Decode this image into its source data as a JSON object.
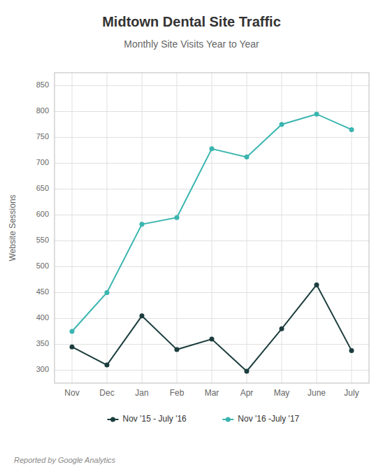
{
  "chart_data": {
    "type": "line",
    "title": "Midtown Dental Site Traffic",
    "subtitle": "Monthly Site Visits Year to Year",
    "y_label": "Website Sessions",
    "annotations": [
      "Reported by Google Analytics"
    ],
    "categories": [
      "Nov",
      "Dec",
      "Jan",
      "Feb",
      "Mar",
      "Apr",
      "May",
      "June",
      "July"
    ],
    "series": [
      {
        "name": "Nov '15 - July '16",
        "color": "#1c3d3d",
        "marker": "circle",
        "values": [
          345,
          310,
          405,
          340,
          360,
          298,
          380,
          465,
          338
        ]
      },
      {
        "name": "Nov '16 -July '17",
        "color": "#3ab5b0",
        "marker": "circle",
        "values": [
          375,
          450,
          582,
          595,
          728,
          712,
          775,
          795,
          765
        ]
      }
    ],
    "ylim": [
      275,
      875
    ],
    "yticks": [
      300,
      350,
      400,
      450,
      500,
      550,
      600,
      650,
      700,
      750,
      800,
      850
    ],
    "grid": true,
    "legend": "bottom"
  }
}
